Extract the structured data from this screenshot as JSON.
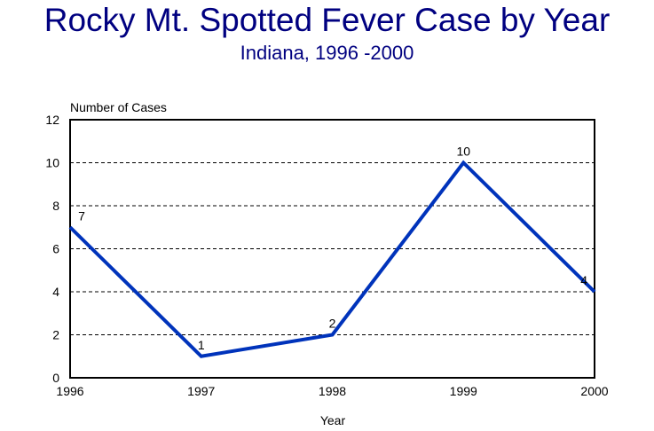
{
  "chart_data": {
    "type": "line",
    "title": "Rocky Mt. Spotted Fever Case by Year",
    "subtitle": "Indiana, 1996 -2000",
    "xlabel": "Year",
    "ylabel": "Number of Cases",
    "categories": [
      "1996",
      "1997",
      "1998",
      "1999",
      "2000"
    ],
    "values": [
      7,
      1,
      2,
      10,
      4
    ],
    "data_labels": [
      "7",
      "1",
      "2",
      "10",
      "4"
    ],
    "ylim": [
      0,
      12
    ],
    "yticks": [
      0,
      2,
      4,
      6,
      8,
      10,
      12
    ],
    "grid": "horizontal dashed",
    "legend": "none",
    "colors": {
      "line": "#0033bb",
      "title": "#000080"
    }
  }
}
